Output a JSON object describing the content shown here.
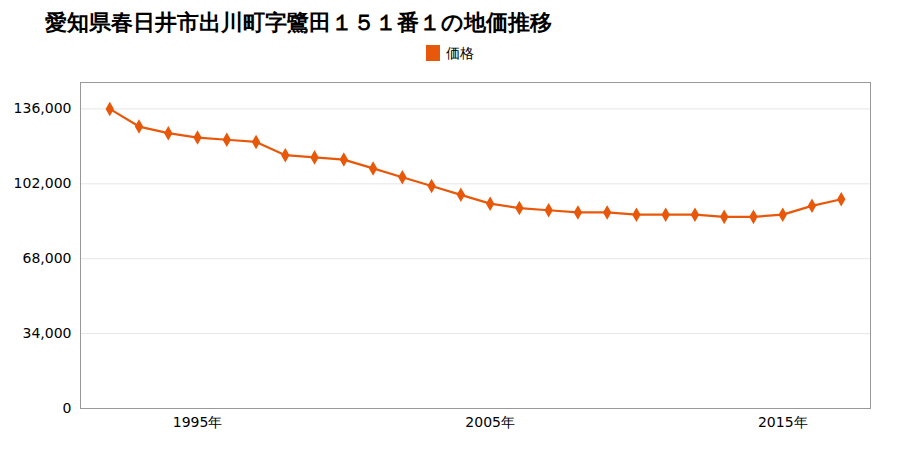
{
  "chart_data": {
    "type": "line",
    "title": "愛知県春日井市出川町字鷺田１５１番１の地価推移",
    "x": [
      1992,
      1993,
      1994,
      1995,
      1996,
      1997,
      1998,
      1999,
      2000,
      2001,
      2002,
      2003,
      2004,
      2005,
      2006,
      2007,
      2008,
      2009,
      2010,
      2011,
      2012,
      2013,
      2014,
      2015,
      2016,
      2017
    ],
    "series": [
      {
        "name": "価格",
        "color": "#E8580A",
        "marker": "diamond",
        "values": [
          136000,
          128000,
          125000,
          123000,
          122000,
          121000,
          115000,
          114000,
          113000,
          109000,
          105000,
          101000,
          97000,
          93000,
          91000,
          90000,
          89000,
          89000,
          88000,
          88000,
          88000,
          87000,
          87000,
          88000,
          92000,
          95000
        ]
      }
    ],
    "xlim": [
      1991,
      2018
    ],
    "xticks": [
      {
        "value": 1995,
        "label": "1995年"
      },
      {
        "value": 2005,
        "label": "2005年"
      },
      {
        "value": 2015,
        "label": "2015年"
      }
    ],
    "ylim": [
      0,
      148000
    ],
    "yticks": [
      0,
      {
        "value": 34000,
        "label": "34,000"
      },
      {
        "value": 68000,
        "label": "68,000"
      },
      {
        "value": 102000,
        "label": "102,000"
      },
      {
        "value": 136000,
        "label": "136,000"
      }
    ],
    "grid": true,
    "legend": "top"
  }
}
